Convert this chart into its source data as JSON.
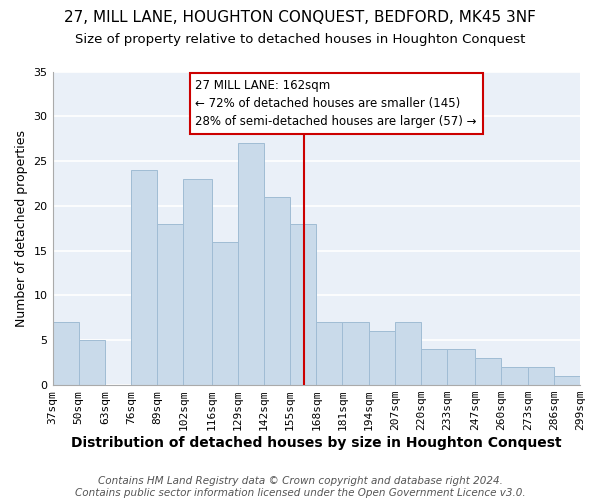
{
  "title": "27, MILL LANE, HOUGHTON CONQUEST, BEDFORD, MK45 3NF",
  "subtitle": "Size of property relative to detached houses in Houghton Conquest",
  "xlabel": "Distribution of detached houses by size in Houghton Conquest",
  "ylabel": "Number of detached properties",
  "bin_edges": [
    37,
    50,
    63,
    76,
    89,
    102,
    116,
    129,
    142,
    155,
    168,
    181,
    194,
    207,
    220,
    233,
    247,
    260,
    273,
    286,
    299
  ],
  "counts": [
    7,
    5,
    0,
    24,
    18,
    23,
    16,
    27,
    21,
    18,
    7,
    7,
    6,
    7,
    4,
    4,
    3,
    2,
    2,
    1
  ],
  "bar_color": "#c9daea",
  "bar_edgecolor": "#a0bcd4",
  "vline_x": 162,
  "vline_color": "#cc0000",
  "annotation_box_text": "27 MILL LANE: 162sqm\n← 72% of detached houses are smaller (145)\n28% of semi-detached houses are larger (57) →",
  "annotation_box_facecolor": "#ffffff",
  "annotation_box_edgecolor": "#cc0000",
  "ylim": [
    0,
    35
  ],
  "tick_labels": [
    "37sqm",
    "50sqm",
    "63sqm",
    "76sqm",
    "89sqm",
    "102sqm",
    "116sqm",
    "129sqm",
    "142sqm",
    "155sqm",
    "168sqm",
    "181sqm",
    "194sqm",
    "207sqm",
    "220sqm",
    "233sqm",
    "247sqm",
    "260sqm",
    "273sqm",
    "286sqm",
    "299sqm"
  ],
  "footer_line1": "Contains HM Land Registry data © Crown copyright and database right 2024.",
  "footer_line2": "Contains public sector information licensed under the Open Government Licence v3.0.",
  "background_color": "#ffffff",
  "plot_bg_color": "#eaf0f8",
  "grid_color": "#ffffff",
  "title_fontsize": 11,
  "subtitle_fontsize": 9.5,
  "xlabel_fontsize": 10,
  "ylabel_fontsize": 9,
  "tick_fontsize": 8,
  "footer_fontsize": 7.5,
  "annot_fontsize": 8.5
}
